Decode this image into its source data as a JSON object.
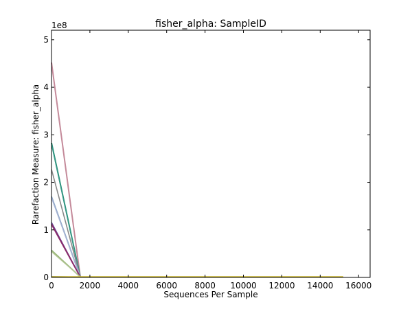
{
  "chart_data": {
    "type": "line",
    "title": "fisher_alpha: SampleID",
    "xlabel": "Sequences Per Sample",
    "ylabel": "Rarefaction Measure: fisher_alpha",
    "y_offset_label": "1e8",
    "xlim": [
      0,
      16600
    ],
    "ylim": [
      0,
      5.2
    ],
    "y_unit_multiplier": 100000000,
    "grid": false,
    "x_ticks": [
      0,
      2000,
      4000,
      6000,
      8000,
      10000,
      12000,
      14000,
      16000
    ],
    "x_tick_labels": [
      "0",
      "2000",
      "4000",
      "6000",
      "8000",
      "10000",
      "12000",
      "14000",
      "16000"
    ],
    "y_ticks": [
      0,
      1,
      2,
      3,
      4,
      5
    ],
    "y_tick_labels": [
      "0",
      "1",
      "2",
      "3",
      "4",
      "5"
    ],
    "series": [
      {
        "color": "#c48a9a",
        "width": 2.0,
        "x": [
          0,
          1500
        ],
        "y": [
          4.52,
          0.01
        ]
      },
      {
        "color": "#1f8a70",
        "width": 2.0,
        "x": [
          0,
          1500
        ],
        "y": [
          2.83,
          0.01
        ]
      },
      {
        "color": "#3a9a8a",
        "width": 1.2,
        "x": [
          0,
          1500
        ],
        "y": [
          2.8,
          0.01
        ]
      },
      {
        "color": "#888888",
        "width": 1.6,
        "x": [
          0,
          1500
        ],
        "y": [
          2.27,
          0.01
        ]
      },
      {
        "color": "#8ea8c8",
        "width": 2.0,
        "x": [
          0,
          1500
        ],
        "y": [
          1.7,
          0.01
        ]
      },
      {
        "color": "#aab4d4",
        "width": 1.2,
        "x": [
          0,
          1500
        ],
        "y": [
          1.67,
          0.01
        ]
      },
      {
        "color": "#6a4a9a",
        "width": 1.4,
        "x": [
          0,
          1500
        ],
        "y": [
          1.16,
          0.01
        ]
      },
      {
        "color": "#8a2a6a",
        "width": 2.0,
        "x": [
          0,
          1500
        ],
        "y": [
          1.12,
          0.01
        ]
      },
      {
        "color": "#9ab87a",
        "width": 2.0,
        "x": [
          0,
          1500
        ],
        "y": [
          0.57,
          0.01
        ]
      },
      {
        "color": "#b8c89a",
        "width": 1.2,
        "x": [
          0,
          1500
        ],
        "y": [
          0.54,
          0.01
        ]
      },
      {
        "color": "#2a4a8a",
        "width": 1.0,
        "x": [
          0,
          1500
        ],
        "y": [
          0.02,
          0.01
        ]
      },
      {
        "color": "#c8b428",
        "width": 2.0,
        "x": [
          0,
          15200
        ],
        "y": [
          0.01,
          0.01
        ]
      }
    ]
  }
}
